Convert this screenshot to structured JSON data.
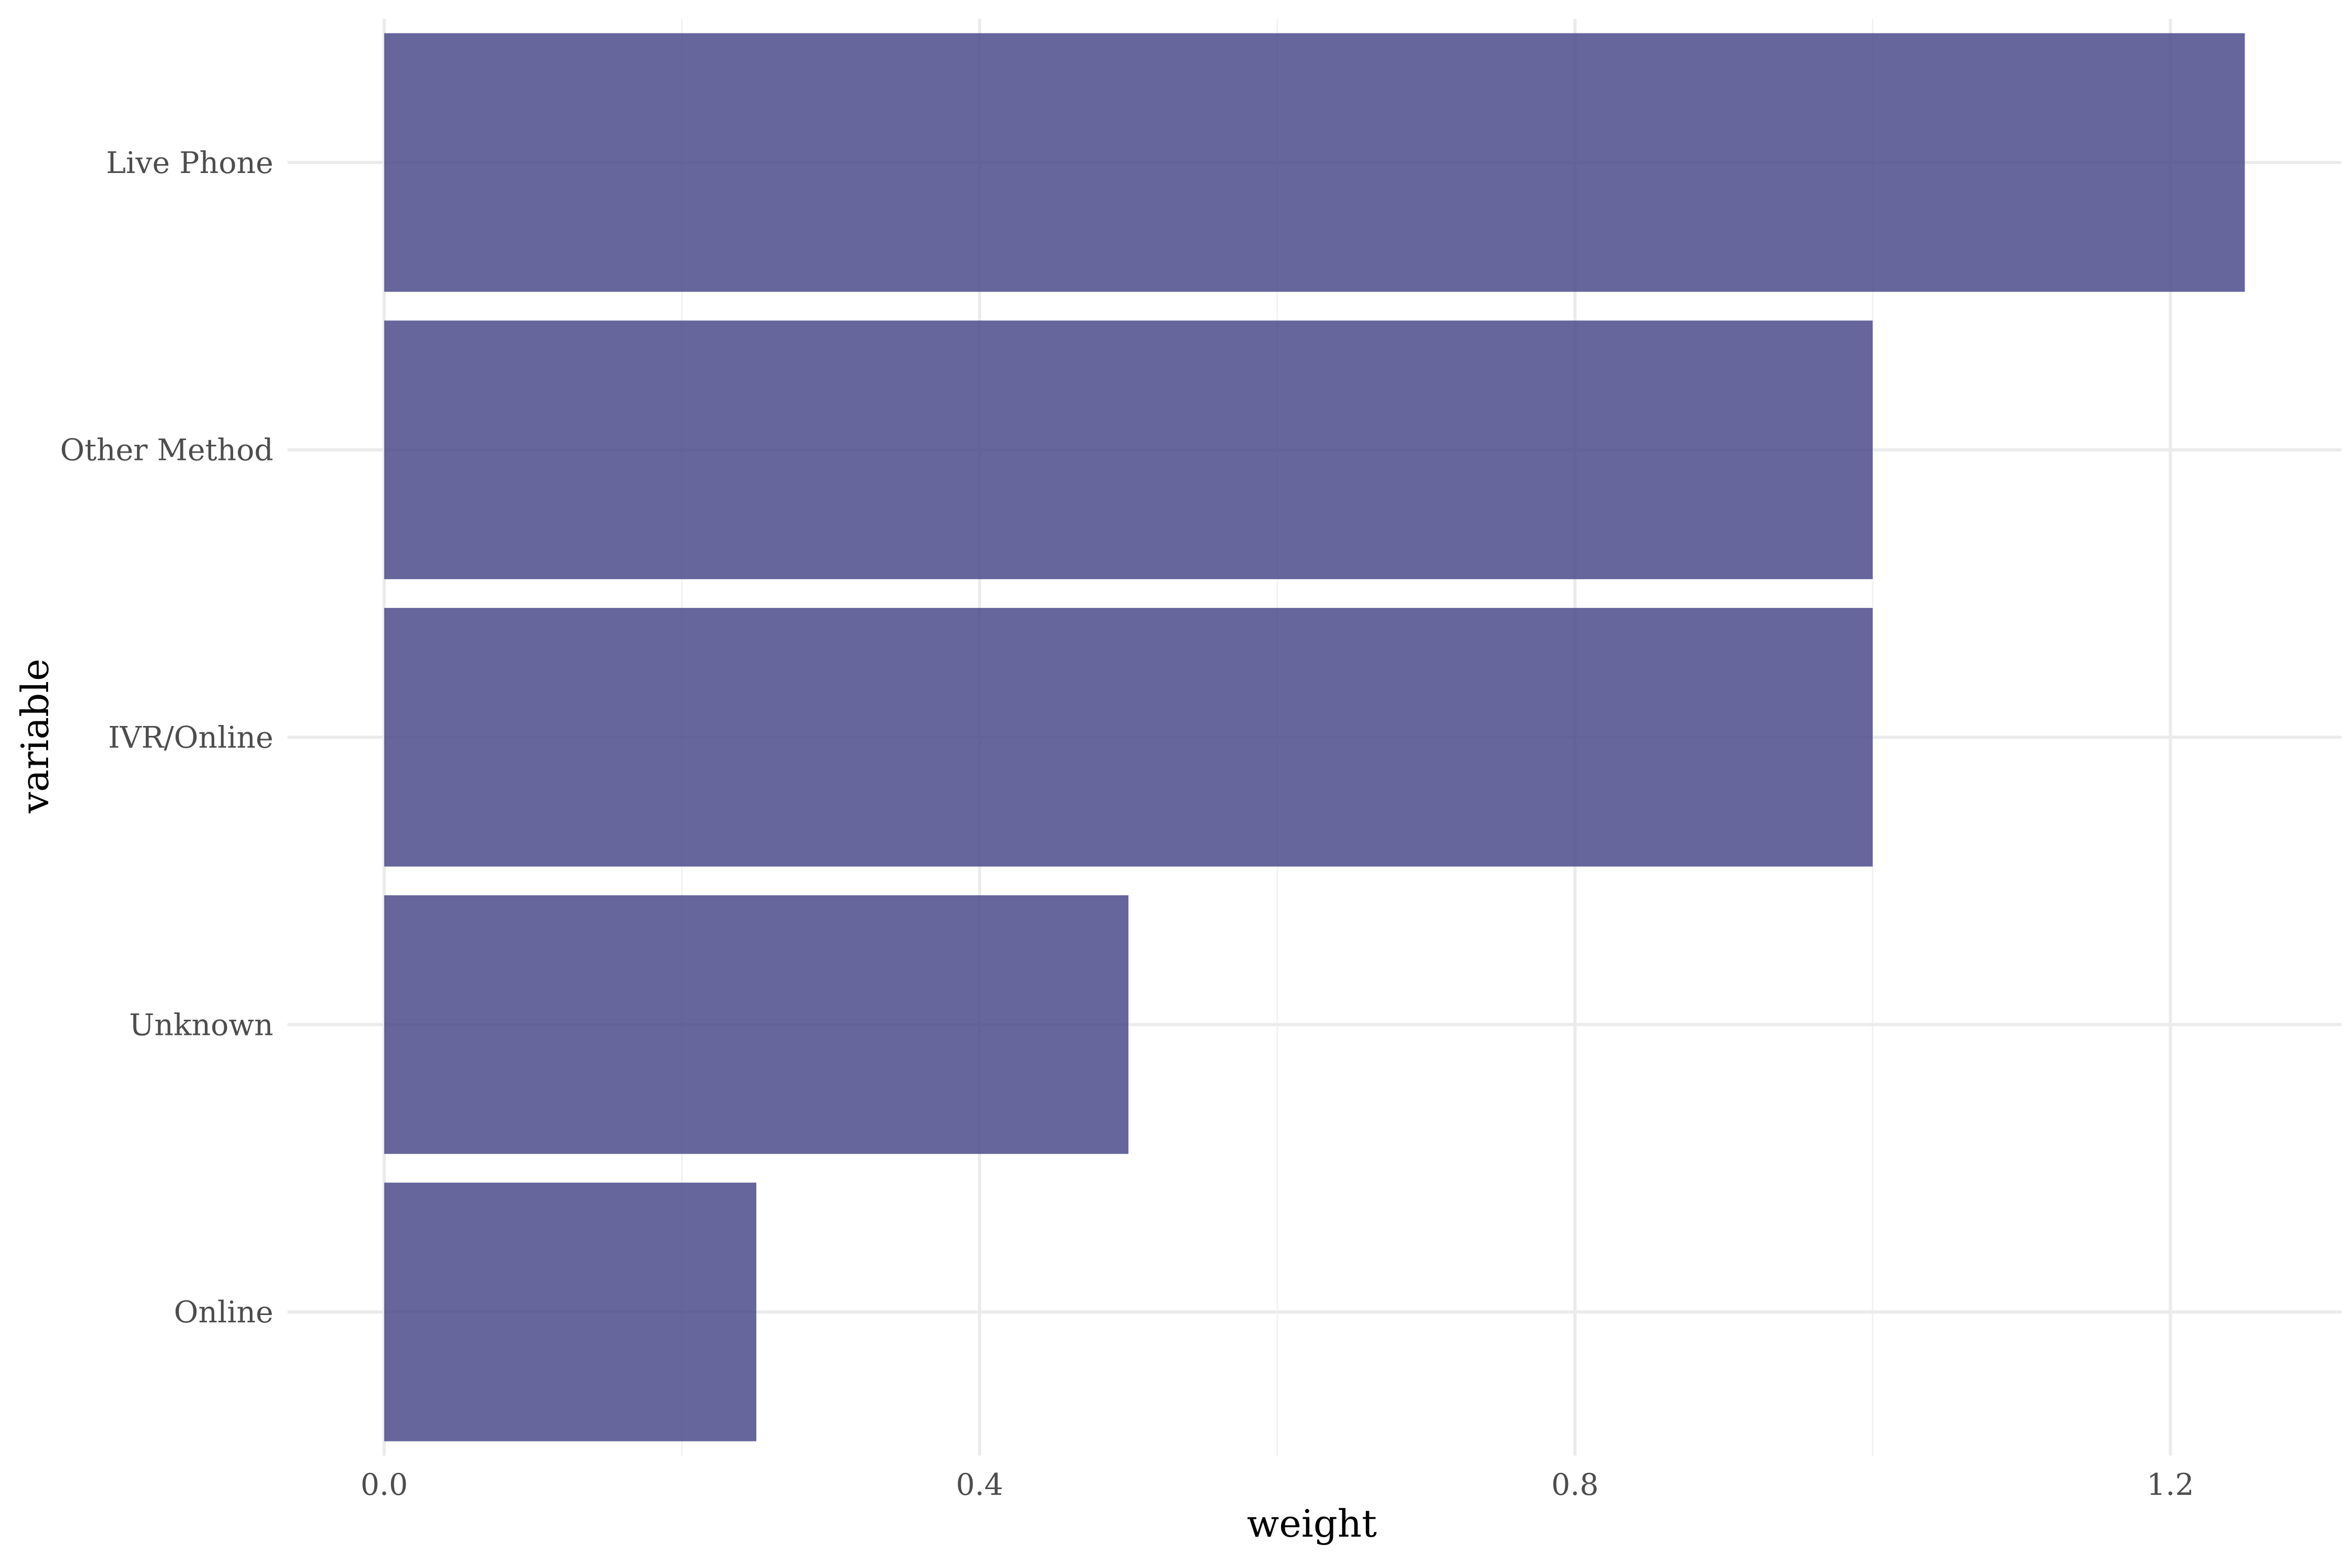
{
  "chart_data": {
    "type": "bar",
    "orientation": "horizontal",
    "categories": [
      "Live Phone",
      "Other Method",
      "IVR/Online",
      "Unknown",
      "Online"
    ],
    "values": [
      1.25,
      1.0,
      1.0,
      0.5,
      0.25
    ],
    "xlabel": "weight",
    "ylabel": "variable",
    "xlim": [
      -0.065,
      1.315
    ],
    "x_ticks": [
      0.0,
      0.4,
      0.8,
      1.2
    ],
    "x_tick_labels": [
      "0.0",
      "0.4",
      "0.8",
      "1.2"
    ],
    "x_minor_ticks": [
      0.2,
      0.6,
      1.0
    ],
    "grid": true,
    "legend": "none",
    "bar_color": "#4b4b8c"
  }
}
